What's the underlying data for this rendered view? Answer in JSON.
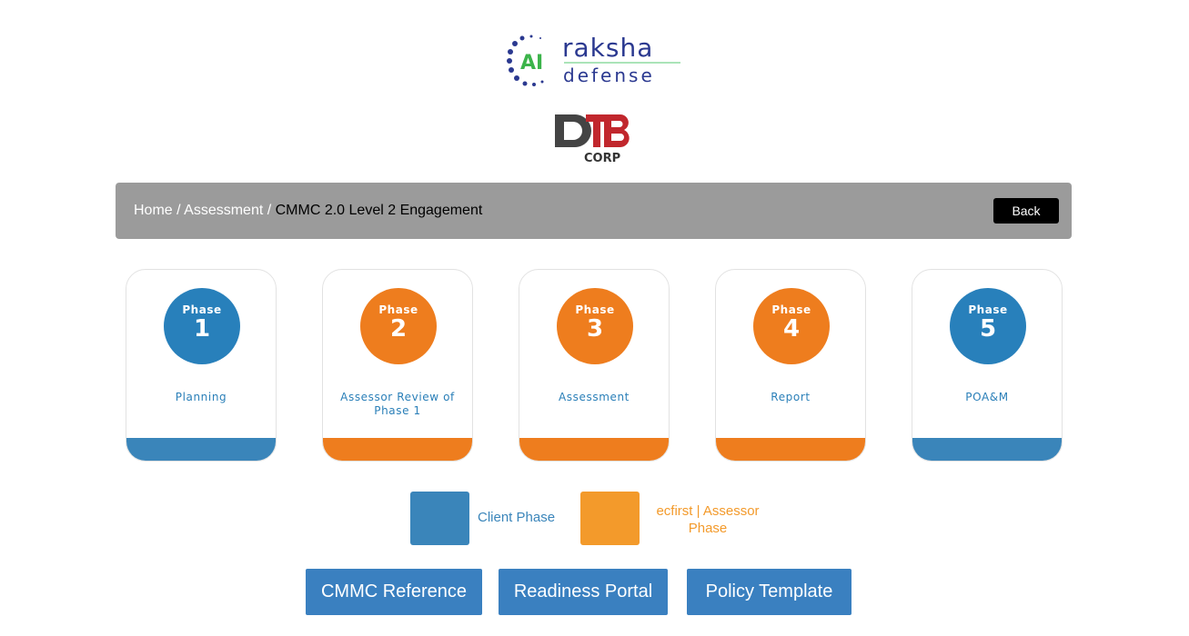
{
  "logos": {
    "primary": "raksha defense",
    "primary_badge": "AI",
    "secondary": "DTB CORP"
  },
  "breadcrumb": {
    "items": [
      "Home",
      "Assessment"
    ],
    "current": "CMMC 2.0 Level 2 Engagement",
    "separator": " / "
  },
  "back_label": "Back",
  "colors": {
    "client": "#3a85ba",
    "assessor": "#ee7d1e",
    "circle_blue": "#2880bb",
    "button": "#3a80c0",
    "bar": "#9b9b9b"
  },
  "phases": [
    {
      "label": "Phase",
      "number": "1",
      "title": "Planning",
      "type": "client"
    },
    {
      "label": "Phase",
      "number": "2",
      "title": "Assessor Review of Phase 1",
      "type": "assessor"
    },
    {
      "label": "Phase",
      "number": "3",
      "title": "Assessment",
      "type": "assessor"
    },
    {
      "label": "Phase",
      "number": "4",
      "title": "Report",
      "type": "assessor"
    },
    {
      "label": "Phase",
      "number": "5",
      "title": "POA&M",
      "type": "client"
    }
  ],
  "legend": {
    "client": "Client Phase",
    "assessor": "ecfirst | Assessor Phase"
  },
  "buttons": [
    "CMMC Reference",
    "Readiness Portal",
    "Policy Template"
  ]
}
